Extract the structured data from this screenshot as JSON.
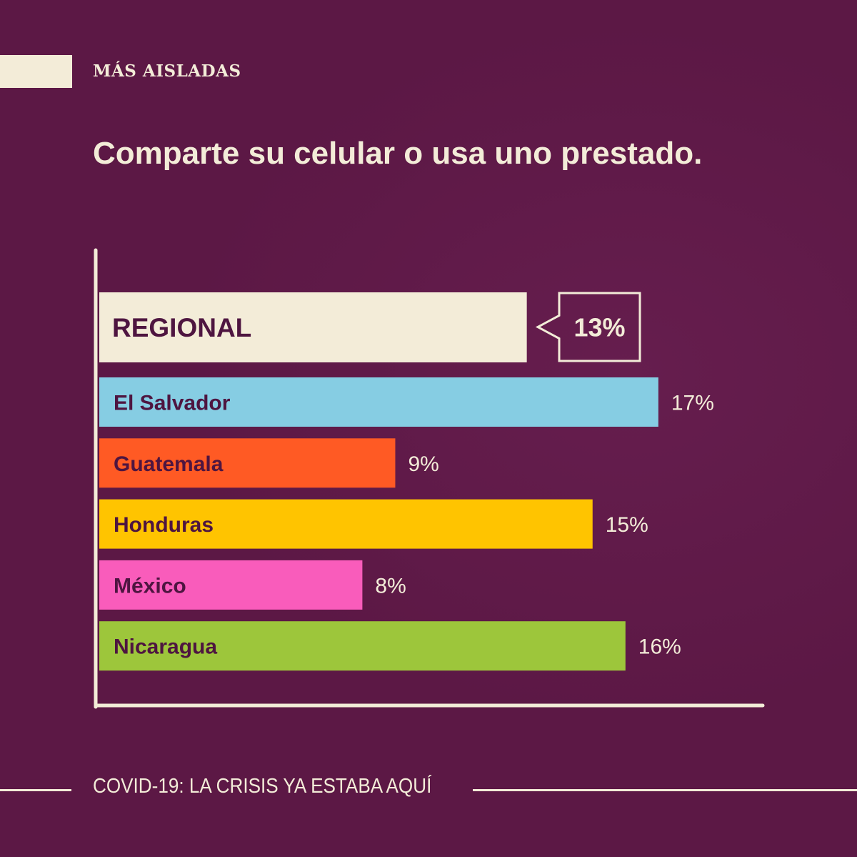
{
  "header": {
    "tag": "MÁS AISLADAS",
    "headline": "Comparte su celular o usa uno prestado."
  },
  "footer": {
    "text": "COVID-19: LA CRISIS YA ESTABA AQUÍ"
  },
  "colors": {
    "background": "#5c1845",
    "cream": "#f3ecd8",
    "label_text": "#4e1540"
  },
  "chart_data": {
    "type": "bar",
    "orientation": "horizontal",
    "title": "Comparte su celular o usa uno prestado.",
    "categories": [
      "REGIONAL",
      "El Salvador",
      "Guatemala",
      "Honduras",
      "México",
      "Nicaragua"
    ],
    "values": [
      13,
      17,
      9,
      15,
      8,
      16
    ],
    "value_labels": [
      "13%",
      "17%",
      "9%",
      "15%",
      "8%",
      "16%"
    ],
    "bar_colors": [
      "#f3ecd8",
      "#86cde3",
      "#ff5a24",
      "#ffc400",
      "#f95cbb",
      "#9dc63b"
    ],
    "unit": "%",
    "highlight_category": "REGIONAL",
    "xlim": [
      0,
      20
    ],
    "grid": false,
    "legend": "none"
  }
}
